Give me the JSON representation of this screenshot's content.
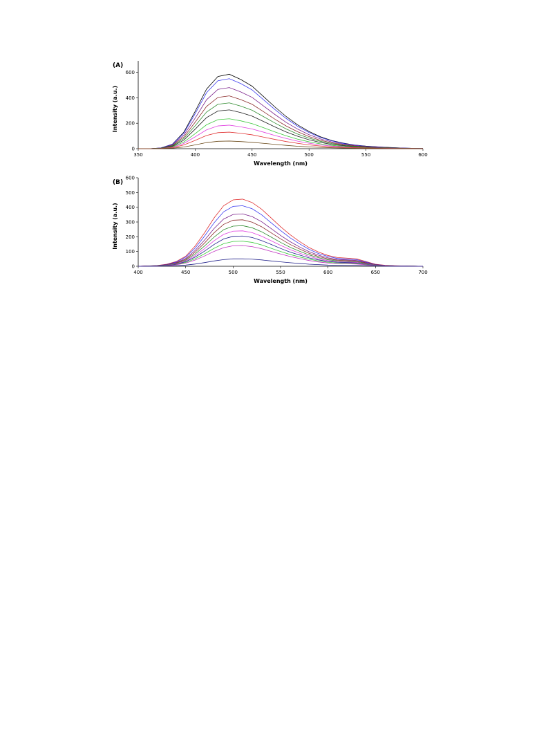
{
  "chart_data": [
    {
      "type": "line",
      "title": "(A)",
      "y_label": "Intensity (a.u.)",
      "x_label": "Wavelength (nm)",
      "x": [
        350,
        360,
        370,
        380,
        390,
        400,
        410,
        420,
        430,
        440,
        450,
        460,
        470,
        480,
        490,
        500,
        510,
        520,
        530,
        540,
        550,
        560,
        570,
        580,
        590,
        600
      ],
      "xlim": [
        350,
        600
      ],
      "xticks": [
        350,
        400,
        450,
        500,
        550,
        600
      ],
      "ylim": [
        0,
        690
      ],
      "yticks": [
        0,
        200,
        400,
        600
      ],
      "series": [
        {
          "color": "#000000",
          "values": [
            0,
            0,
            6,
            35,
            129,
            293,
            468,
            567,
            585,
            544,
            491,
            410,
            328,
            252,
            187,
            135,
            94,
            64,
            44,
            29,
            20,
            15,
            10,
            6,
            3,
            2
          ]
        },
        {
          "color": "#3a3af0",
          "values": [
            0,
            0,
            6,
            33,
            121,
            275,
            440,
            534,
            550,
            512,
            462,
            385,
            308,
            237,
            176,
            127,
            88,
            61,
            41,
            28,
            19,
            14,
            9,
            6,
            3,
            2
          ]
        },
        {
          "color": "#7a1f8a",
          "values": [
            0,
            0,
            5,
            29,
            106,
            240,
            384,
            466,
            480,
            446,
            403,
            336,
            269,
            206,
            154,
            110,
            77,
            53,
            36,
            24,
            17,
            12,
            8,
            5,
            2,
            1
          ]
        },
        {
          "color": "#8b2a2a",
          "values": [
            0,
            0,
            4,
            25,
            91,
            208,
            332,
            403,
            415,
            386,
            349,
            291,
            232,
            178,
            133,
            95,
            66,
            46,
            31,
            21,
            15,
            10,
            7,
            4,
            2,
            1
          ]
        },
        {
          "color": "#2e8b2e",
          "values": [
            0,
            0,
            4,
            22,
            79,
            180,
            288,
            349,
            360,
            335,
            302,
            252,
            202,
            155,
            115,
            83,
            58,
            40,
            27,
            18,
            13,
            9,
            6,
            4,
            2,
            1
          ]
        },
        {
          "color": "#1a1a1a",
          "values": [
            0,
            0,
            3,
            18,
            67,
            153,
            244,
            296,
            305,
            284,
            256,
            214,
            171,
            131,
            98,
            70,
            49,
            34,
            23,
            15,
            11,
            8,
            5,
            3,
            2,
            1
          ]
        },
        {
          "color": "#3cc83c",
          "values": [
            0,
            0,
            2,
            14,
            52,
            118,
            188,
            228,
            235,
            219,
            197,
            165,
            132,
            101,
            75,
            54,
            38,
            26,
            18,
            12,
            8,
            6,
            4,
            2,
            1,
            1
          ]
        },
        {
          "color": "#e040e0",
          "values": [
            0,
            0,
            2,
            11,
            41,
            93,
            148,
            179,
            185,
            172,
            155,
            130,
            104,
            80,
            59,
            43,
            30,
            20,
            14,
            9,
            6,
            5,
            3,
            2,
            1,
            1
          ]
        },
        {
          "color": "#e03030",
          "values": [
            0,
            0,
            1,
            8,
            29,
            65,
            104,
            126,
            130,
            121,
            109,
            91,
            73,
            56,
            42,
            30,
            21,
            14,
            10,
            7,
            5,
            3,
            2,
            1,
            1,
            0
          ]
        },
        {
          "color": "#6b4a1a",
          "values": [
            0,
            0,
            1,
            4,
            13,
            30,
            48,
            58,
            60,
            56,
            50,
            42,
            34,
            26,
            19,
            14,
            10,
            7,
            5,
            3,
            2,
            2,
            1,
            1,
            0,
            0
          ]
        }
      ]
    },
    {
      "type": "line",
      "title": "(B)",
      "y_label": "Intensity (a.u.)",
      "x_label": "Wavelength (nm)",
      "x": [
        400,
        410,
        420,
        430,
        440,
        450,
        460,
        470,
        480,
        490,
        500,
        510,
        520,
        530,
        540,
        550,
        560,
        570,
        580,
        590,
        600,
        610,
        620,
        630,
        640,
        650,
        660,
        670,
        680,
        690,
        700
      ],
      "xlim": [
        400,
        700
      ],
      "xticks": [
        400,
        450,
        500,
        550,
        600,
        650,
        700
      ],
      "ylim": [
        0,
        600
      ],
      "yticks": [
        0,
        100,
        200,
        300,
        400,
        500,
        600
      ],
      "series": [
        {
          "color": "#e03030",
          "values": [
            0,
            2,
            5,
            14,
            32,
            68,
            137,
            228,
            328,
            410,
            450,
            455,
            432,
            387,
            328,
            268,
            214,
            168,
            127,
            96,
            73,
            59,
            55,
            50,
            32,
            14,
            7,
            4,
            2,
            1,
            0
          ]
        },
        {
          "color": "#3a3af0",
          "values": [
            0,
            2,
            4,
            12,
            29,
            62,
            123,
            205,
            295,
            369,
            406,
            410,
            390,
            349,
            295,
            242,
            193,
            152,
            115,
            86,
            66,
            53,
            49,
            45,
            29,
            12,
            6,
            3,
            2,
            1,
            0
          ]
        },
        {
          "color": "#7a1f8a",
          "values": [
            0,
            2,
            4,
            11,
            25,
            53,
            107,
            178,
            256,
            320,
            351,
            355,
            337,
            302,
            256,
            209,
            167,
            131,
            99,
            75,
            57,
            46,
            43,
            39,
            25,
            11,
            5,
            3,
            1,
            1,
            0
          ]
        },
        {
          "color": "#8b2a2a",
          "values": [
            0,
            2,
            3,
            9,
            22,
            47,
            95,
            158,
            227,
            284,
            312,
            315,
            299,
            268,
            227,
            186,
            148,
            117,
            88,
            66,
            50,
            41,
            38,
            35,
            22,
            9,
            5,
            3,
            1,
            1,
            0
          ]
        },
        {
          "color": "#2e8b2e",
          "values": [
            0,
            1,
            3,
            8,
            19,
            41,
            83,
            138,
            198,
            248,
            272,
            275,
            261,
            234,
            198,
            162,
            129,
            102,
            77,
            58,
            44,
            36,
            33,
            30,
            19,
            8,
            4,
            2,
            1,
            1,
            0
          ]
        },
        {
          "color": "#e040e0",
          "values": [
            0,
            1,
            2,
            7,
            17,
            36,
            72,
            120,
            173,
            216,
            238,
            240,
            228,
            204,
            173,
            142,
            113,
            89,
            67,
            50,
            38,
            31,
            29,
            26,
            17,
            7,
            4,
            2,
            1,
            0,
            0
          ]
        },
        {
          "color": "#1a1a8a",
          "values": [
            0,
            1,
            2,
            6,
            14,
            31,
            62,
            103,
            148,
            185,
            203,
            205,
            195,
            174,
            148,
            121,
            96,
            76,
            57,
            43,
            33,
            27,
            25,
            23,
            14,
            6,
            3,
            2,
            1,
            0,
            0
          ]
        },
        {
          "color": "#3cc83c",
          "values": [
            0,
            1,
            2,
            5,
            12,
            26,
            51,
            85,
            122,
            153,
            168,
            170,
            162,
            145,
            122,
            100,
            80,
            63,
            48,
            36,
            27,
            22,
            20,
            19,
            12,
            5,
            3,
            1,
            1,
            0,
            0
          ]
        },
        {
          "color": "#c030c0",
          "values": [
            0,
            1,
            1,
            4,
            10,
            21,
            42,
            70,
            101,
            126,
            139,
            140,
            133,
            119,
            101,
            83,
            66,
            52,
            39,
            29,
            22,
            18,
            17,
            15,
            10,
            4,
            2,
            1,
            1,
            0,
            0
          ]
        },
        {
          "color": "#20208a",
          "values": [
            0,
            0,
            1,
            2,
            4,
            8,
            15,
            25,
            36,
            45,
            50,
            50,
            48,
            43,
            36,
            30,
            24,
            19,
            14,
            11,
            8,
            7,
            6,
            6,
            4,
            2,
            1,
            0,
            0,
            0,
            0
          ]
        }
      ]
    }
  ]
}
